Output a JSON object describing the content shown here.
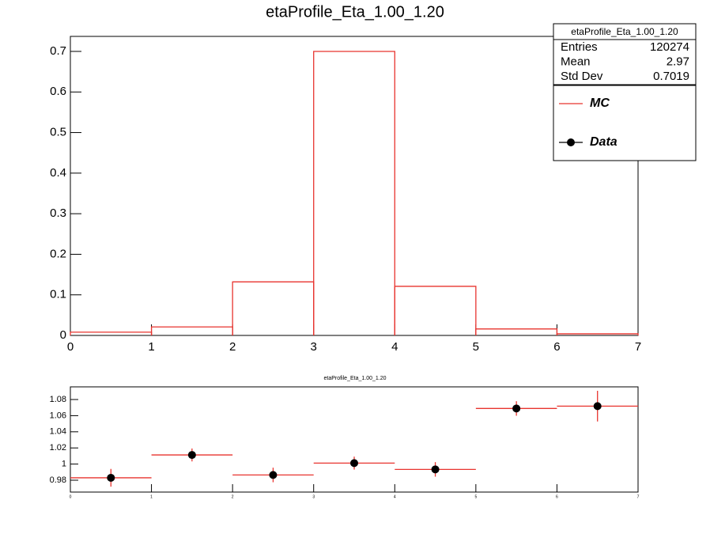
{
  "chart_data": [
    {
      "type": "histogram",
      "title": "etaProfile_Eta_1.00_1.20",
      "bins": [
        0,
        1,
        2,
        3,
        4,
        5,
        6,
        7
      ],
      "values": [
        0.008,
        0.021,
        0.132,
        0.7,
        0.121,
        0.016,
        0.004
      ],
      "color": "#e8342f",
      "xlim": [
        0,
        7
      ],
      "ylim": [
        0,
        0.737
      ],
      "xticks": [
        0,
        1,
        2,
        3,
        4,
        5,
        6,
        7
      ],
      "yticks": [
        0,
        0.1,
        0.2,
        0.3,
        0.4,
        0.5,
        0.6,
        0.7
      ],
      "stats": {
        "title": "etaProfile_Eta_1.00_1.20",
        "rows": [
          {
            "label": "Entries",
            "value": 120274
          },
          {
            "label": "Mean",
            "value": 2.97
          },
          {
            "label": "Std Dev",
            "value": 0.7019
          }
        ]
      },
      "legend": [
        {
          "name": "MC",
          "color": "#e8342f",
          "marker": "line"
        },
        {
          "name": "Data",
          "color": "#000000",
          "marker": "point"
        }
      ]
    },
    {
      "type": "errorbar",
      "title": "etaProfile_Eta_1.00_1.20",
      "bins": [
        0,
        1,
        2,
        3,
        4,
        5,
        6,
        7
      ],
      "x": [
        0.5,
        1.5,
        2.5,
        3.5,
        4.5,
        5.5,
        6.5
      ],
      "values": [
        0.983,
        1.0113,
        0.9865,
        1.0012,
        0.9934,
        1.0689,
        1.0718
      ],
      "errors": [
        0.011,
        0.008,
        0.009,
        0.008,
        0.009,
        0.009,
        0.019
      ],
      "color": "#e8342f",
      "marker_color": "#000000",
      "xlim": [
        0,
        7
      ],
      "ylim": [
        0.9653,
        1.0957
      ],
      "xticks": [
        0,
        1,
        2,
        3,
        4,
        5,
        6,
        7
      ],
      "yticks": [
        0.98,
        1,
        1.02,
        1.04,
        1.06,
        1.08
      ]
    }
  ]
}
